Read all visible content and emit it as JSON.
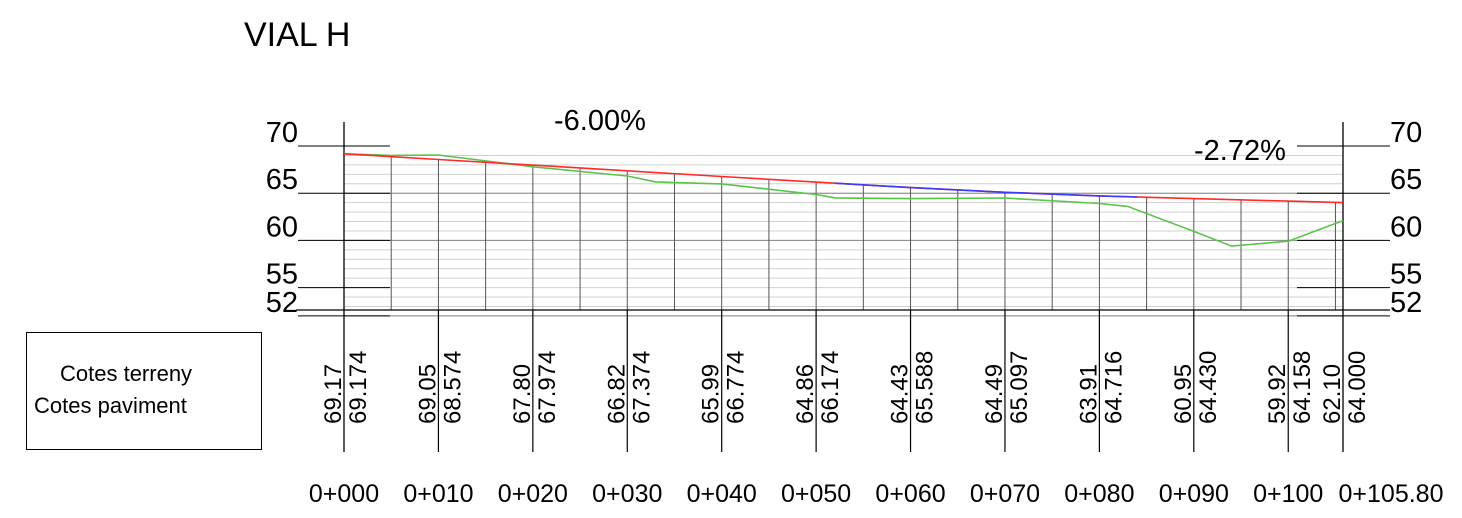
{
  "title": "VIAL H",
  "legend": {
    "terrain_label": "Cotes terreny",
    "pavement_label": "Cotes paviment"
  },
  "grades": [
    "-6.00%",
    "-2.72%"
  ],
  "y_axis_labels": [
    "70",
    "65",
    "60",
    "55",
    "52"
  ],
  "colors": {
    "terrain": "#5bc34a",
    "pavement": "#ff2a2a",
    "pavement_blue_segment": "#3b3bff",
    "grid": "#d0d0d0"
  },
  "stations": [
    {
      "chainage": "0+000",
      "terreny": "69.17",
      "paviment": "69.174"
    },
    {
      "chainage": "0+010",
      "terreny": "69.05",
      "paviment": "68.574"
    },
    {
      "chainage": "0+020",
      "terreny": "67.80",
      "paviment": "67.974"
    },
    {
      "chainage": "0+030",
      "terreny": "66.82",
      "paviment": "67.374"
    },
    {
      "chainage": "0+040",
      "terreny": "65.99",
      "paviment": "66.774"
    },
    {
      "chainage": "0+050",
      "terreny": "64.86",
      "paviment": "66.174"
    },
    {
      "chainage": "0+060",
      "terreny": "64.43",
      "paviment": "65.588"
    },
    {
      "chainage": "0+070",
      "terreny": "64.49",
      "paviment": "65.097"
    },
    {
      "chainage": "0+080",
      "terreny": "63.91",
      "paviment": "64.716"
    },
    {
      "chainage": "0+090",
      "terreny": "60.95",
      "paviment": "64.430"
    },
    {
      "chainage": "0+100",
      "terreny": "59.92",
      "paviment": "64.158"
    },
    {
      "chainage": "0+105.80",
      "terreny": "62.10",
      "paviment": "64.000"
    }
  ],
  "chart_data": {
    "type": "line",
    "title": "VIAL H",
    "xlabel": "",
    "ylabel": "",
    "ylim": [
      52,
      70
    ],
    "y_ticks": [
      70,
      65,
      60,
      55,
      52
    ],
    "series": [
      {
        "name": "Cotes terreny",
        "x": [
          0,
          5,
          10,
          20,
          30,
          33,
          40,
          50,
          52,
          60,
          70,
          80,
          83,
          90,
          94,
          100,
          105.8
        ],
        "values": [
          69.17,
          69.0,
          69.05,
          67.8,
          66.82,
          66.2,
          65.99,
          64.86,
          64.5,
          64.43,
          64.49,
          63.91,
          63.6,
          60.95,
          59.4,
          59.92,
          62.1
        ]
      },
      {
        "name": "Cotes paviment",
        "x": [
          0,
          10,
          20,
          30,
          40,
          50,
          60,
          70,
          80,
          90,
          100,
          105.8
        ],
        "values": [
          69.174,
          68.574,
          67.974,
          67.374,
          66.774,
          66.174,
          65.588,
          65.097,
          64.716,
          64.43,
          64.158,
          64.0
        ]
      }
    ]
  }
}
